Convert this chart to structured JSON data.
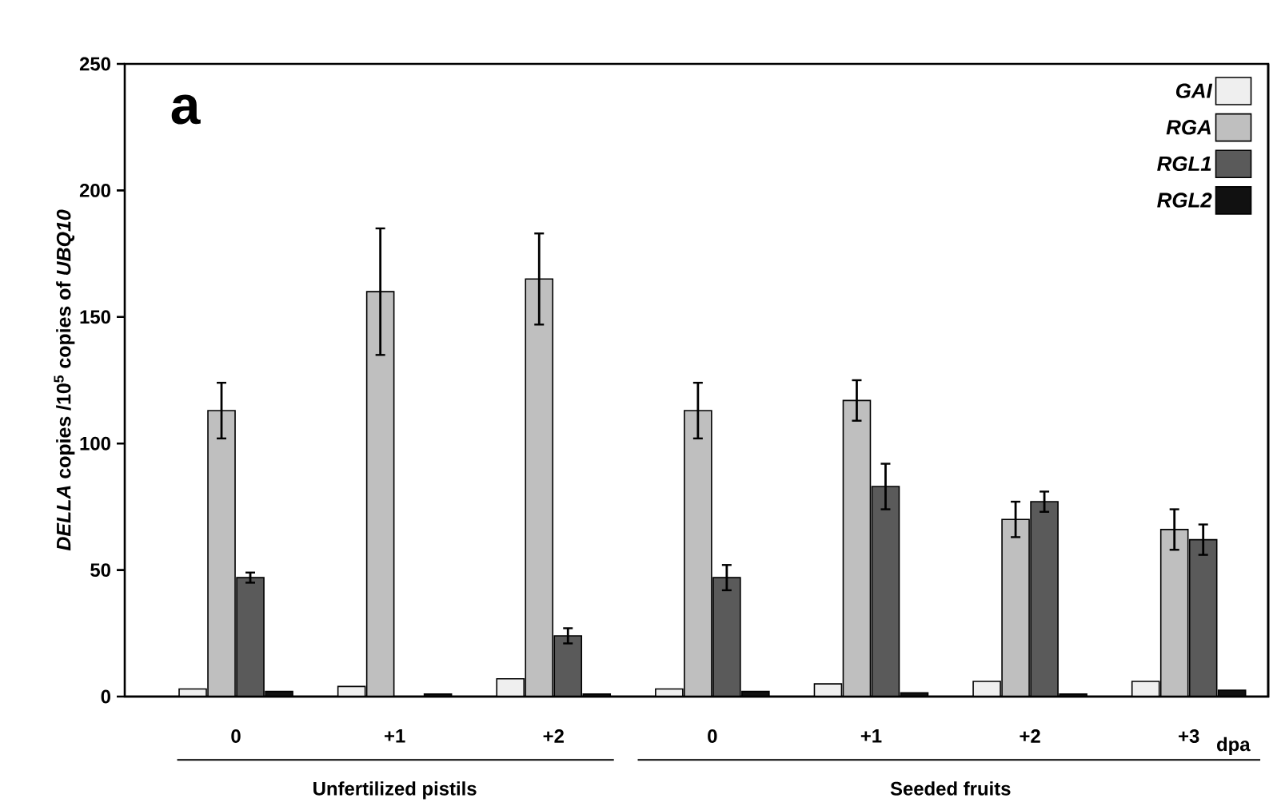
{
  "chart_data": {
    "type": "bar",
    "ylabel": "*DELLA* copies /10$^{5}$ copies of *UBQ10*",
    "categories": [
      "0",
      "+1",
      "+2",
      "0",
      "+1",
      "+2",
      "+3"
    ],
    "series": [
      {
        "name": "GAI",
        "color": "#efefef",
        "values": [
          3,
          4,
          7,
          3,
          5,
          6,
          6
        ]
      },
      {
        "name": "RGA",
        "color": "#bfbfbf",
        "values": [
          113,
          160,
          165,
          113,
          117,
          70,
          66
        ],
        "errors": [
          11,
          25,
          18,
          11,
          8,
          7,
          8
        ]
      },
      {
        "name": "RGL1",
        "color": "#5a5a5a",
        "values": [
          47,
          null,
          24,
          47,
          83,
          77,
          62
        ],
        "errors": [
          2,
          null,
          3,
          5,
          9,
          4,
          6
        ]
      },
      {
        "name": "RGL2",
        "color": "#111111",
        "values": [
          2,
          1,
          1,
          2,
          1.5,
          1,
          2.5
        ]
      }
    ],
    "ylim": [
      0,
      250
    ],
    "yticks": [
      0,
      50,
      100,
      150,
      200,
      250
    ],
    "legend": "top right",
    "annotations": [
      "a",
      "Unfertilized pistils",
      "Seeded fruits",
      "dpa"
    ]
  }
}
